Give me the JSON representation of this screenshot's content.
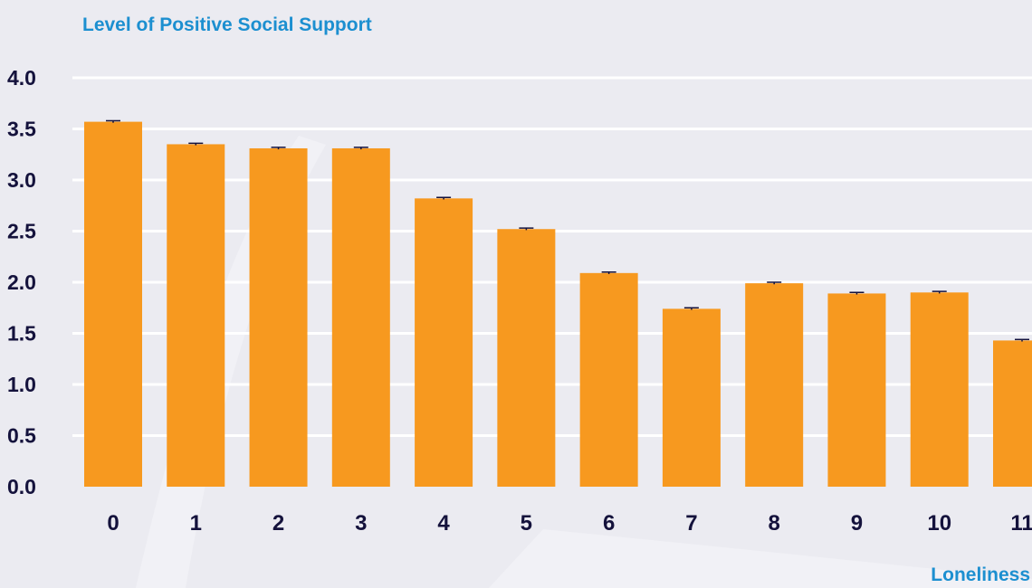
{
  "colors": {
    "background": "#ebebf1",
    "bar": "#f7991f",
    "label_blue": "#1c8fd0",
    "tick_text": "#14123c",
    "gridline": "#ffffff",
    "error_bar": "#14123c"
  },
  "chart_data": {
    "type": "bar",
    "ylabel": "Level of Positive Social Support",
    "xlabel": "Loneliness",
    "categories": [
      "0",
      "1",
      "2",
      "3",
      "4",
      "5",
      "6",
      "7",
      "8",
      "9",
      "10",
      "11"
    ],
    "values": [
      3.57,
      3.35,
      3.31,
      3.31,
      2.82,
      2.52,
      2.09,
      1.74,
      1.99,
      1.89,
      1.9,
      1.43
    ],
    "error": [
      0.01,
      0.01,
      0.01,
      0.01,
      0.01,
      0.01,
      0.01,
      0.01,
      0.01,
      0.01,
      0.01,
      0.01
    ],
    "ylim": [
      0,
      4
    ],
    "yticks": [
      "0.0",
      "0.5",
      "1.0",
      "1.5",
      "2.0",
      "2.5",
      "3.0",
      "3.5",
      "4.0"
    ],
    "grid": true,
    "legend": "none"
  }
}
